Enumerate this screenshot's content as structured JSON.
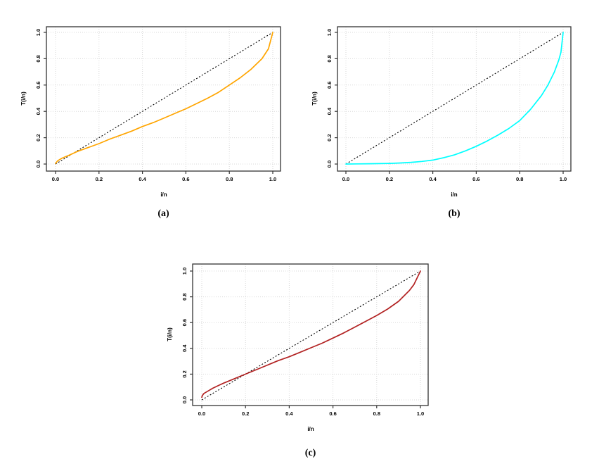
{
  "figure": {
    "background": "#ffffff",
    "grid_color": "#d9d9d9",
    "box_color": "#333333",
    "text_color": "#000000"
  },
  "chart_data": [
    {
      "type": "line",
      "caption": "(a)",
      "xlabel": "i/n",
      "ylabel": "T(i/n)",
      "xlim": [
        0,
        1
      ],
      "ylim": [
        0,
        1
      ],
      "grid": true,
      "legend": "none",
      "xtick_labels": [
        "0.0",
        "0.2",
        "0.4",
        "0.6",
        "0.8",
        "1.0"
      ],
      "ytick_labels": [
        "0.0",
        "0.2",
        "0.4",
        "0.6",
        "0.8",
        "1.0"
      ],
      "xticks": [
        0,
        0.2,
        0.4,
        0.6,
        0.8,
        1.0
      ],
      "yticks": [
        0,
        0.2,
        0.4,
        0.6,
        0.8,
        1.0
      ],
      "diagonal": {
        "color": "#000000",
        "style": "dashed",
        "x": [
          0,
          1
        ],
        "y": [
          0,
          1
        ]
      },
      "curve": {
        "color": "#FFA500",
        "x": [
          0,
          0.01,
          0.03,
          0.06,
          0.08,
          0.1,
          0.15,
          0.2,
          0.25,
          0.3,
          0.35,
          0.4,
          0.45,
          0.5,
          0.55,
          0.6,
          0.65,
          0.7,
          0.75,
          0.8,
          0.85,
          0.9,
          0.95,
          0.98,
          1.0
        ],
        "y": [
          0.005,
          0.025,
          0.045,
          0.065,
          0.08,
          0.095,
          0.125,
          0.155,
          0.19,
          0.22,
          0.25,
          0.285,
          0.315,
          0.35,
          0.385,
          0.42,
          0.46,
          0.5,
          0.545,
          0.6,
          0.655,
          0.72,
          0.8,
          0.875,
          1.0
        ]
      }
    },
    {
      "type": "line",
      "caption": "(b)",
      "xlabel": "i/n",
      "ylabel": "T(i/n)",
      "xlim": [
        0,
        1
      ],
      "ylim": [
        0,
        1
      ],
      "grid": true,
      "legend": "none",
      "xtick_labels": [
        "0.0",
        "0.2",
        "0.4",
        "0.6",
        "0.8",
        "1.0"
      ],
      "ytick_labels": [
        "0.0",
        "0.2",
        "0.4",
        "0.6",
        "0.8",
        "1.0"
      ],
      "xticks": [
        0,
        0.2,
        0.4,
        0.6,
        0.8,
        1.0
      ],
      "yticks": [
        0,
        0.2,
        0.4,
        0.6,
        0.8,
        1.0
      ],
      "diagonal": {
        "color": "#000000",
        "style": "dashed",
        "x": [
          0,
          1
        ],
        "y": [
          0,
          1
        ]
      },
      "curve": {
        "color": "#00FFFF",
        "x": [
          0,
          0.05,
          0.1,
          0.15,
          0.2,
          0.25,
          0.3,
          0.35,
          0.4,
          0.45,
          0.5,
          0.55,
          0.6,
          0.65,
          0.7,
          0.75,
          0.8,
          0.85,
          0.9,
          0.93,
          0.96,
          0.98,
          0.99,
          1.0
        ],
        "y": [
          0.0,
          0.001,
          0.002,
          0.003,
          0.005,
          0.008,
          0.013,
          0.02,
          0.03,
          0.048,
          0.07,
          0.1,
          0.135,
          0.175,
          0.22,
          0.27,
          0.33,
          0.415,
          0.52,
          0.6,
          0.7,
          0.79,
          0.85,
          1.0
        ]
      }
    },
    {
      "type": "line",
      "caption": "(c)",
      "xlabel": "i/n",
      "ylabel": "T(i/n)",
      "xlim": [
        0,
        1
      ],
      "ylim": [
        0,
        1
      ],
      "grid": true,
      "legend": "none",
      "xtick_labels": [
        "0.0",
        "0.2",
        "0.4",
        "0.6",
        "0.8",
        "1.0"
      ],
      "ytick_labels": [
        "0.0",
        "0.2",
        "0.4",
        "0.6",
        "0.8",
        "1.0"
      ],
      "xticks": [
        0,
        0.2,
        0.4,
        0.6,
        0.8,
        1.0
      ],
      "yticks": [
        0,
        0.2,
        0.4,
        0.6,
        0.8,
        1.0
      ],
      "diagonal": {
        "color": "#000000",
        "style": "dashed",
        "x": [
          0,
          1
        ],
        "y": [
          0,
          1
        ]
      },
      "curve": {
        "color": "#B22222",
        "x": [
          0,
          0.003,
          0.01,
          0.03,
          0.05,
          0.08,
          0.1,
          0.15,
          0.2,
          0.25,
          0.3,
          0.35,
          0.4,
          0.45,
          0.5,
          0.55,
          0.6,
          0.65,
          0.7,
          0.75,
          0.8,
          0.85,
          0.9,
          0.95,
          0.97,
          1.0
        ],
        "y": [
          0.02,
          0.035,
          0.05,
          0.07,
          0.09,
          0.115,
          0.13,
          0.165,
          0.2,
          0.235,
          0.27,
          0.305,
          0.335,
          0.37,
          0.405,
          0.44,
          0.48,
          0.52,
          0.565,
          0.61,
          0.655,
          0.705,
          0.765,
          0.85,
          0.895,
          1.0
        ]
      }
    }
  ]
}
